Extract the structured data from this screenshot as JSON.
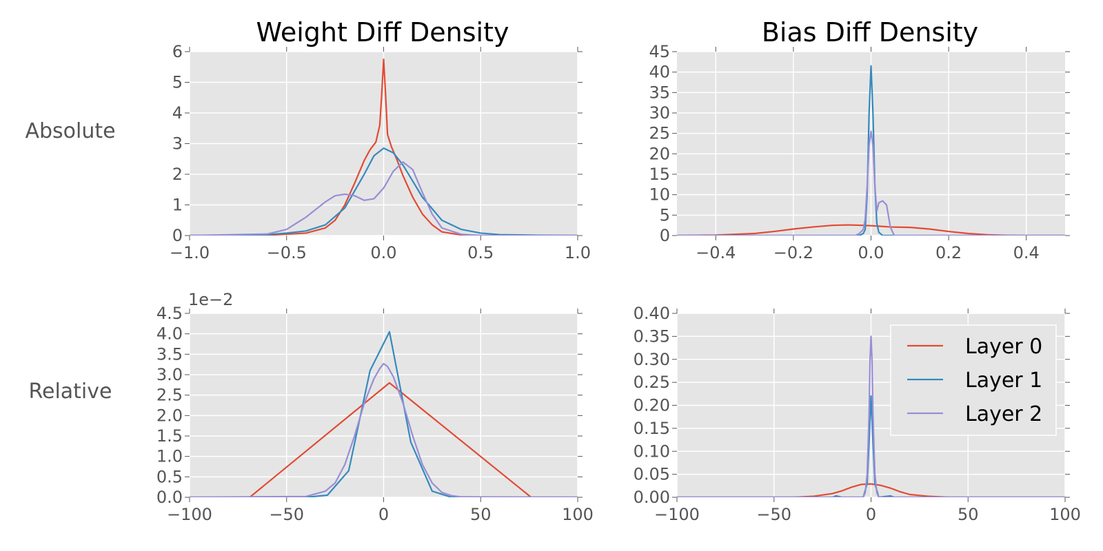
{
  "figure": {
    "col_titles": [
      "Weight Diff Density",
      "Bias Diff Density"
    ],
    "row_labels": [
      "Absolute",
      "Relative"
    ],
    "colors": {
      "layer0": "#E24A33",
      "layer1": "#348ABD",
      "layer2": "#988ED5",
      "axes_bg": "#E5E5E5",
      "grid": "#FFFFFF",
      "text": "#555555"
    }
  },
  "chart_data": [
    {
      "id": "abs-weight",
      "type": "line",
      "title": "Weight Diff Density",
      "row_label": "Absolute",
      "xlim": [
        -1.0,
        1.0
      ],
      "ylim": [
        0,
        6
      ],
      "xticks": [
        -1.0,
        -0.5,
        0.0,
        0.5,
        1.0
      ],
      "xticklabels": [
        "−1.0",
        "−0.5",
        "0.0",
        "0.5",
        "1.0"
      ],
      "yticks": [
        0,
        1,
        2,
        3,
        4,
        5,
        6
      ],
      "yticklabels": [
        "0",
        "1",
        "2",
        "3",
        "4",
        "5",
        "6"
      ],
      "offset_text": "",
      "grid": true,
      "series": [
        {
          "color": "#E24A33",
          "x": [
            -1.0,
            -0.6,
            -0.4,
            -0.3,
            -0.25,
            -0.2,
            -0.15,
            -0.1,
            -0.07,
            -0.04,
            -0.02,
            -0.01,
            0.0,
            0.01,
            0.02,
            0.04,
            0.07,
            0.1,
            0.15,
            0.2,
            0.25,
            0.3,
            0.4,
            0.5,
            1.0
          ],
          "y": [
            0,
            0.01,
            0.08,
            0.25,
            0.5,
            1.0,
            1.7,
            2.45,
            2.8,
            3.05,
            3.6,
            4.6,
            5.75,
            4.6,
            3.3,
            2.9,
            2.45,
            1.95,
            1.25,
            0.7,
            0.35,
            0.12,
            0.02,
            0.0,
            0
          ]
        },
        {
          "color": "#348ABD",
          "x": [
            -1.0,
            -0.6,
            -0.5,
            -0.4,
            -0.3,
            -0.2,
            -0.1,
            -0.05,
            0.0,
            0.05,
            0.1,
            0.2,
            0.3,
            0.4,
            0.5,
            0.6,
            0.8,
            1.0
          ],
          "y": [
            0,
            0.03,
            0.08,
            0.15,
            0.35,
            0.9,
            2.0,
            2.6,
            2.85,
            2.7,
            2.3,
            1.25,
            0.5,
            0.2,
            0.08,
            0.03,
            0.01,
            0
          ]
        },
        {
          "color": "#988ED5",
          "x": [
            -1.0,
            -0.6,
            -0.5,
            -0.4,
            -0.3,
            -0.25,
            -0.2,
            -0.15,
            -0.1,
            -0.05,
            0.0,
            0.05,
            0.1,
            0.15,
            0.2,
            0.25,
            0.3,
            0.4,
            0.5,
            1.0
          ],
          "y": [
            0,
            0.05,
            0.2,
            0.6,
            1.1,
            1.3,
            1.35,
            1.3,
            1.15,
            1.2,
            1.55,
            2.1,
            2.4,
            2.15,
            1.4,
            0.7,
            0.25,
            0.04,
            0.0,
            0
          ]
        }
      ]
    },
    {
      "id": "abs-bias",
      "type": "line",
      "title": "Bias Diff Density",
      "row_label": "Absolute",
      "xlim": [
        -0.5,
        0.5
      ],
      "ylim": [
        0,
        45
      ],
      "xticks": [
        -0.4,
        -0.2,
        0.0,
        0.2,
        0.4
      ],
      "xticklabels": [
        "−0.4",
        "−0.2",
        "0.0",
        "0.2",
        "0.4"
      ],
      "yticks": [
        0,
        5,
        10,
        15,
        20,
        25,
        30,
        35,
        40,
        45
      ],
      "yticklabels": [
        "0",
        "5",
        "10",
        "15",
        "20",
        "25",
        "30",
        "35",
        "40",
        "45"
      ],
      "offset_text": "",
      "grid": true,
      "series": [
        {
          "color": "#E24A33",
          "x": [
            -0.5,
            -0.4,
            -0.3,
            -0.25,
            -0.2,
            -0.15,
            -0.1,
            -0.06,
            -0.02,
            0.02,
            0.05,
            0.1,
            0.15,
            0.2,
            0.25,
            0.3,
            0.35,
            0.4,
            0.5
          ],
          "y": [
            0,
            0.1,
            0.5,
            1.0,
            1.6,
            2.1,
            2.5,
            2.6,
            2.5,
            2.3,
            2.1,
            2.0,
            1.6,
            1.0,
            0.5,
            0.2,
            0.05,
            0.0,
            0
          ]
        },
        {
          "color": "#348ABD",
          "x": [
            -0.5,
            -0.03,
            -0.02,
            -0.015,
            -0.01,
            -0.005,
            0.0,
            0.005,
            0.01,
            0.015,
            0.02,
            0.03,
            0.5
          ],
          "y": [
            0,
            0.0,
            0.5,
            1.5,
            10.0,
            30.0,
            41.5,
            30.0,
            12.0,
            3.0,
            0.8,
            0.0,
            0
          ]
        },
        {
          "color": "#988ED5",
          "x": [
            -0.5,
            -0.04,
            -0.03,
            -0.02,
            -0.015,
            -0.01,
            -0.005,
            0.0,
            0.005,
            0.01,
            0.015,
            0.02,
            0.03,
            0.04,
            0.05,
            0.06,
            0.5
          ],
          "y": [
            0,
            0.0,
            0.5,
            1.5,
            4.0,
            12.0,
            22.0,
            25.5,
            22.0,
            12.0,
            6.0,
            8.0,
            8.5,
            7.5,
            2.0,
            0.0,
            0
          ]
        }
      ]
    },
    {
      "id": "rel-weight",
      "type": "line",
      "row_label": "Relative",
      "xlim": [
        -100,
        100
      ],
      "ylim": [
        0,
        4.5
      ],
      "xticks": [
        -100,
        -50,
        0,
        50,
        100
      ],
      "xticklabels": [
        "−100",
        "−50",
        "0",
        "50",
        "100"
      ],
      "yticks": [
        0,
        0.5,
        1.0,
        1.5,
        2.0,
        2.5,
        3.0,
        3.5,
        4.0,
        4.5
      ],
      "yticklabels": [
        "0.0",
        "0.5",
        "1.0",
        "1.5",
        "2.0",
        "2.5",
        "3.0",
        "3.5",
        "4.0",
        "4.5"
      ],
      "offset_text": "1e−2",
      "grid": true,
      "series": [
        {
          "color": "#E24A33",
          "x": [
            -100,
            -69,
            3,
            76,
            100
          ],
          "y": [
            0,
            0,
            2.8,
            0,
            0
          ]
        },
        {
          "color": "#348ABD",
          "x": [
            -100,
            -40,
            -29,
            -18,
            -7,
            3,
            14,
            25,
            35,
            100
          ],
          "y": [
            0,
            0,
            0.05,
            0.65,
            3.1,
            4.05,
            1.35,
            0.15,
            0.0,
            0
          ]
        },
        {
          "color": "#988ED5",
          "x": [
            -100,
            -40,
            -30,
            -25,
            -20,
            -15,
            -10,
            -5,
            -2,
            0,
            2,
            5,
            10,
            15,
            20,
            25,
            30,
            35,
            40,
            100
          ],
          "y": [
            0,
            0.02,
            0.15,
            0.35,
            0.8,
            1.5,
            2.3,
            2.9,
            3.15,
            3.27,
            3.2,
            2.95,
            2.3,
            1.5,
            0.8,
            0.35,
            0.12,
            0.04,
            0.01,
            0
          ]
        }
      ]
    },
    {
      "id": "rel-bias",
      "type": "line",
      "row_label": "Relative",
      "xlim": [
        -100,
        100
      ],
      "ylim": [
        0,
        0.4
      ],
      "xticks": [
        -100,
        -50,
        0,
        50,
        100
      ],
      "xticklabels": [
        "−100",
        "−50",
        "0",
        "50",
        "100"
      ],
      "yticks": [
        0,
        0.05,
        0.1,
        0.15,
        0.2,
        0.25,
        0.3,
        0.35,
        0.4
      ],
      "yticklabels": [
        "0.00",
        "0.05",
        "0.10",
        "0.15",
        "0.20",
        "0.25",
        "0.30",
        "0.35",
        "0.40"
      ],
      "offset_text": "",
      "grid": true,
      "legend": {
        "placement": "upper right",
        "entries": [
          "Layer 0",
          "Layer 1",
          "Layer 2"
        ]
      },
      "series": [
        {
          "name": "Layer 0",
          "color": "#E24A33",
          "x": [
            -100,
            -40,
            -30,
            -20,
            -15,
            -10,
            -5,
            0,
            5,
            10,
            15,
            20,
            30,
            40,
            100
          ],
          "y": [
            0,
            0.0,
            0.002,
            0.008,
            0.014,
            0.022,
            0.028,
            0.029,
            0.026,
            0.02,
            0.012,
            0.006,
            0.002,
            0.0,
            0
          ]
        },
        {
          "name": "Layer 1",
          "color": "#348ABD",
          "x": [
            -100,
            -20,
            -18,
            -15,
            -4,
            -2,
            -1,
            0,
            1,
            2,
            4,
            10,
            12,
            100
          ],
          "y": [
            0,
            0,
            0.003,
            0,
            0.0,
            0.03,
            0.12,
            0.22,
            0.12,
            0.03,
            0.0,
            0.003,
            0,
            0
          ]
        },
        {
          "name": "Layer 2",
          "color": "#988ED5",
          "x": [
            -100,
            -4,
            -3,
            -2,
            -1,
            -0.5,
            0,
            0.5,
            1,
            2,
            3,
            4,
            100
          ],
          "y": [
            0,
            0,
            0.01,
            0.05,
            0.18,
            0.3,
            0.35,
            0.3,
            0.18,
            0.05,
            0.01,
            0,
            0
          ]
        }
      ]
    }
  ]
}
